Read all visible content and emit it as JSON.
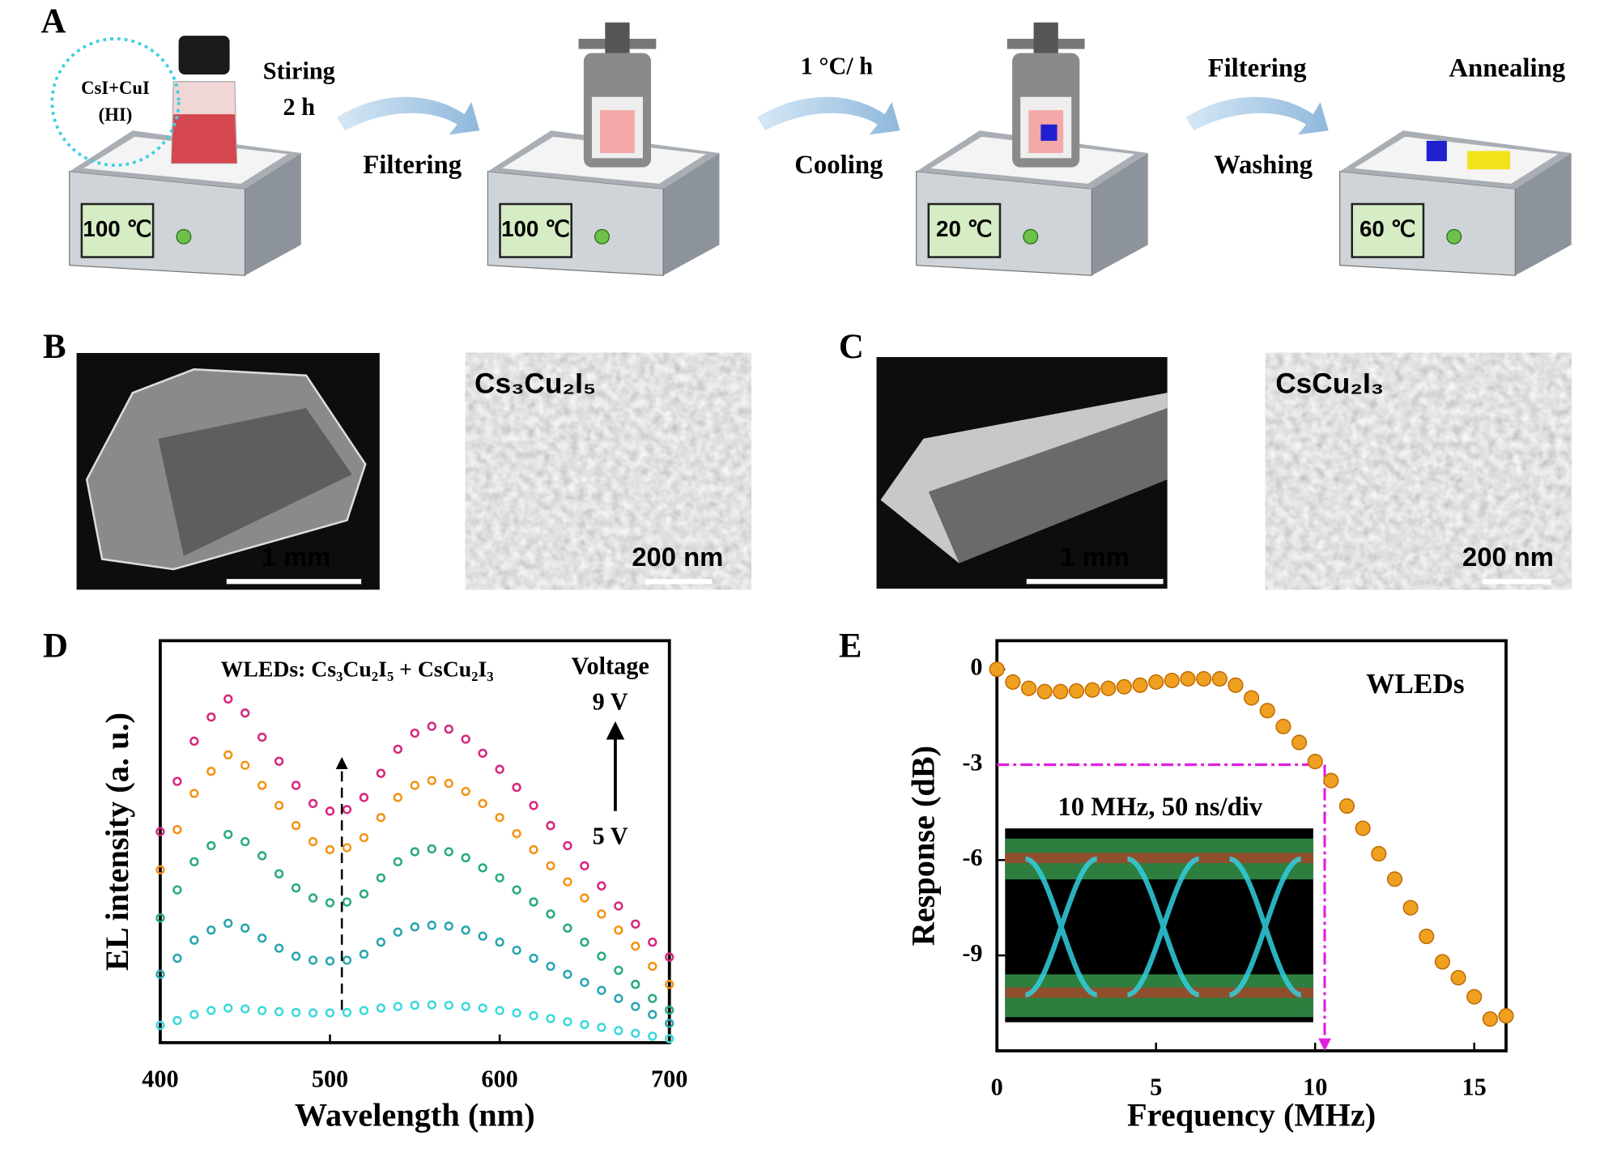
{
  "panel_a": {
    "label": "A",
    "reagent": "CsI+CuI",
    "solvent": "(HI)",
    "steps": [
      "Stiring",
      "2 h",
      "Filtering",
      "1 °C/ h",
      "Cooling",
      "Filtering",
      "Washing",
      "Annealing"
    ],
    "temperatures": [
      "100 ℃",
      "100 ℃",
      "20 ℃",
      "60 ℃"
    ]
  },
  "panel_b": {
    "label": "B",
    "material": "Cs₃Cu₂I₅",
    "scale_left": "1 mm",
    "scale_right": "200 nm"
  },
  "panel_c": {
    "label": "C",
    "material": "CsCu₂I₃",
    "scale_left": "1 mm",
    "scale_right": "200 nm"
  },
  "chart_data": [
    {
      "type": "line",
      "panel": "D",
      "annotation": "WLEDs: Cs₃Cu₂I₅ + CsCu₂I₃",
      "legend_title": "Voltage",
      "legend_top": "9 V",
      "legend_bottom": "5 V",
      "x_label": "Wavelength (nm)",
      "y_label": "EL intensity (a. u.)",
      "xlim": [
        400,
        700
      ],
      "ylim": [
        0,
        100
      ],
      "xticks": [
        400,
        500,
        600,
        700
      ],
      "x": [
        400,
        410,
        420,
        430,
        440,
        450,
        460,
        470,
        480,
        490,
        500,
        510,
        520,
        530,
        540,
        550,
        560,
        570,
        580,
        590,
        600,
        610,
        620,
        630,
        640,
        650,
        660,
        670,
        680,
        690,
        700
      ],
      "series": [
        {
          "color": "#d6287f",
          "values": [
            52.5,
            65,
            75,
            81,
            85.5,
            82,
            76,
            70,
            64,
            59.5,
            57.6,
            58,
            61,
            67,
            73,
            77,
            78.7,
            78,
            75.5,
            72,
            68,
            63.5,
            59,
            54,
            49,
            44,
            39,
            34,
            29.5,
            25,
            21.3
          ]
        },
        {
          "color": "#f39318",
          "values": [
            43,
            53,
            62,
            67.5,
            71.6,
            69,
            64,
            59,
            54,
            50,
            48,
            48.5,
            51,
            56,
            61,
            64,
            65.2,
            64.5,
            62.5,
            59.5,
            56,
            52,
            48,
            44,
            40,
            36,
            32,
            28,
            24,
            19,
            14.5
          ]
        },
        {
          "color": "#2aaa80",
          "values": [
            31,
            38,
            45,
            49,
            51.8,
            50,
            46.5,
            42,
            38.5,
            36,
            34.8,
            35,
            37,
            41,
            45,
            47.5,
            48.2,
            47.5,
            46,
            43.5,
            41,
            38,
            35,
            32,
            28.5,
            25,
            21.5,
            18,
            14.5,
            11,
            8.1
          ]
        },
        {
          "color": "#2aa6b0",
          "values": [
            17,
            21,
            25.5,
            28,
            29.7,
            28.5,
            26,
            23.5,
            21.5,
            20.5,
            20.3,
            20.5,
            22,
            25,
            27.5,
            28.8,
            29.2,
            29,
            28,
            26.5,
            25,
            23,
            21,
            19,
            17,
            15,
            13,
            11,
            9,
            7,
            4.8
          ]
        },
        {
          "color": "#3ed8dc",
          "values": [
            4.3,
            5.5,
            7,
            8,
            8.6,
            8.4,
            8,
            7.7,
            7.5,
            7.4,
            7.4,
            7.5,
            8,
            8.6,
            9,
            9.3,
            9.4,
            9.3,
            9,
            8.6,
            8,
            7.4,
            6.7,
            6,
            5.2,
            4.5,
            3.8,
            3,
            2.3,
            1.6,
            1
          ]
        }
      ]
    },
    {
      "type": "scatter",
      "panel": "E",
      "annotation": "WLEDs",
      "inset_label": "10 MHz, 50 ns/div",
      "x_label": "Frequency (MHz)",
      "y_label": "Response (dB)",
      "xlim": [
        0,
        16
      ],
      "ylim": [
        -12,
        0.9
      ],
      "xticks": [
        0,
        5,
        10,
        15
      ],
      "yticks": [
        0,
        -3,
        -6,
        -9
      ],
      "color": "#f0a020",
      "guide": {
        "x": 10.3,
        "y": -3,
        "color": "#e020e0"
      },
      "x": [
        0,
        0.5,
        1,
        1.5,
        2,
        2.5,
        3,
        3.5,
        4,
        4.5,
        5,
        5.5,
        6,
        6.5,
        7,
        7.5,
        8,
        8.5,
        9,
        9.5,
        10,
        10.5,
        11,
        11.5,
        12,
        12.5,
        13,
        13.5,
        14,
        14.5,
        15,
        15.5,
        16
      ],
      "values": [
        0,
        -0.4,
        -0.6,
        -0.7,
        -0.7,
        -0.68,
        -0.65,
        -0.6,
        -0.55,
        -0.5,
        -0.4,
        -0.35,
        -0.3,
        -0.3,
        -0.3,
        -0.5,
        -0.9,
        -1.3,
        -1.8,
        -2.3,
        -2.9,
        -3.5,
        -4.3,
        -5.0,
        -5.8,
        -6.6,
        -7.5,
        -8.4,
        -9.2,
        -9.7,
        -10.3,
        -11.0,
        -10.9
      ]
    }
  ]
}
